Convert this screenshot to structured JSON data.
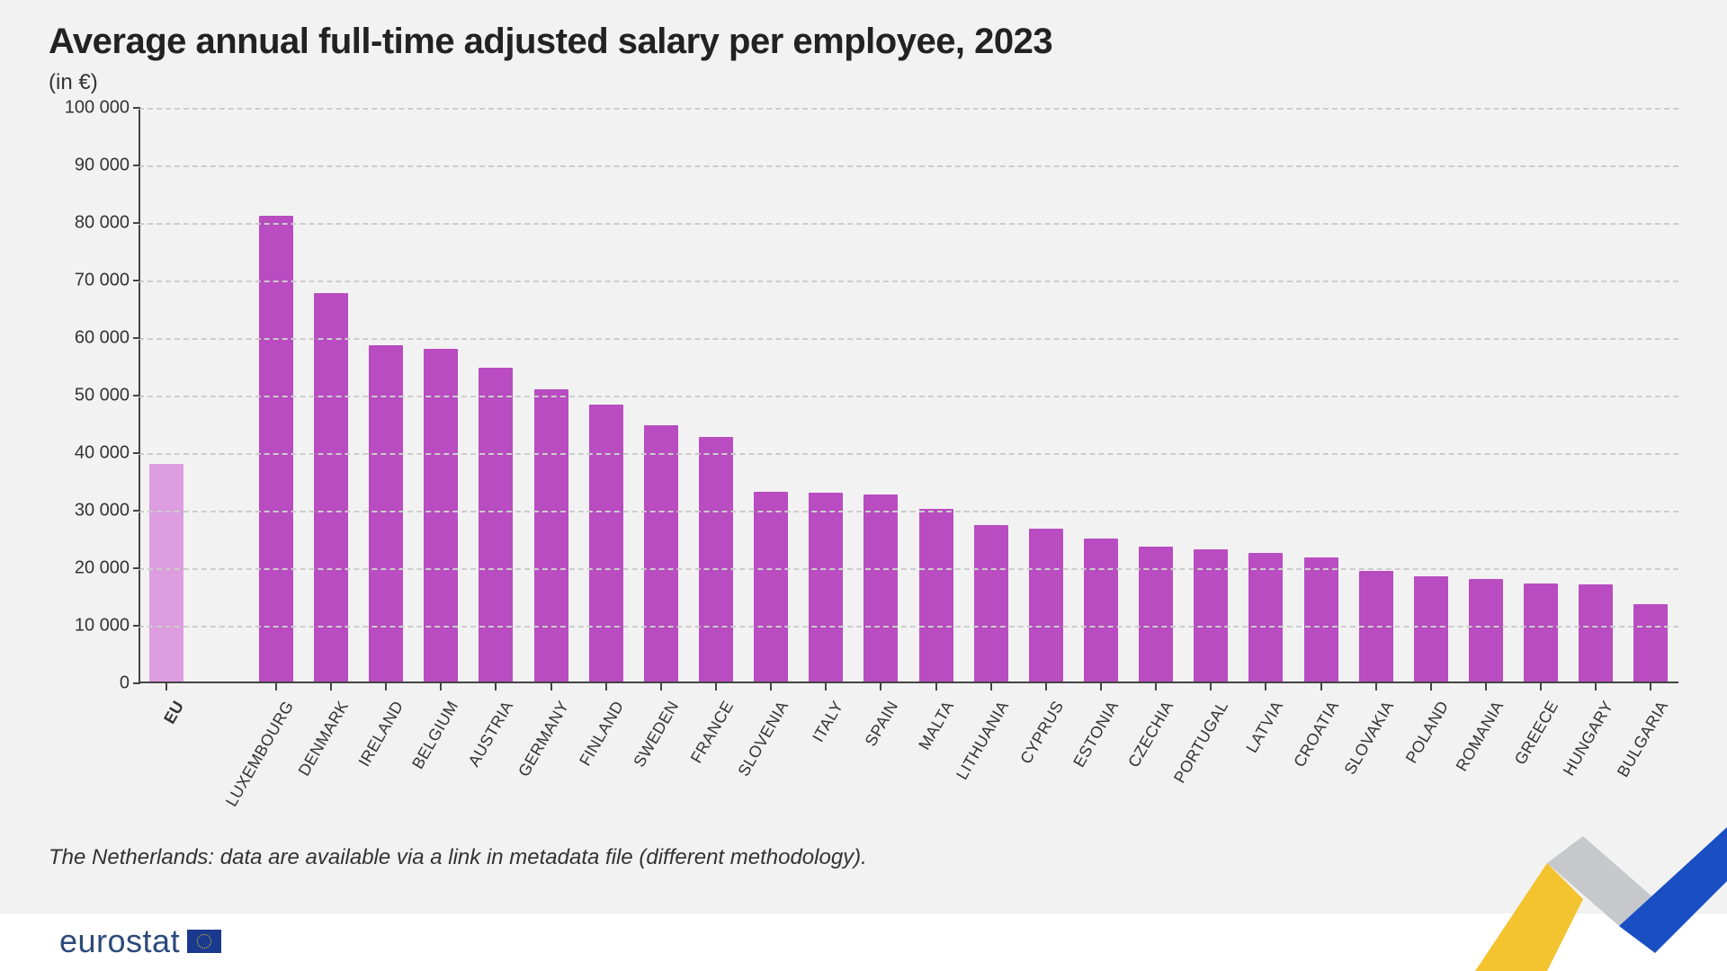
{
  "title": "Average annual full-time adjusted salary per employee, 2023",
  "subtitle": "(in €)",
  "footnote": "The Netherlands: data are available via a link in metadata file (different methodology).",
  "logo_text": "eurostat",
  "chart": {
    "type": "bar",
    "ylim": [
      0,
      100000
    ],
    "ytick_step": 10000,
    "yticks": [
      0,
      10000,
      20000,
      30000,
      40000,
      50000,
      60000,
      70000,
      80000,
      90000,
      100000
    ],
    "ytick_labels": [
      "0",
      "10 000",
      "20 000",
      "30 000",
      "40 000",
      "50 000",
      "60 000",
      "70 000",
      "80 000",
      "90 000",
      "100 000"
    ],
    "background_color": "#f2f2f2",
    "grid_color": "#cccccc",
    "axis_color": "#444444",
    "label_fontsize": 20,
    "xlabel_fontsize": 18,
    "title_fontsize": 40,
    "title_fontweight": 800,
    "subtitle_fontsize": 24,
    "bar_width_ratio": 0.62,
    "gap_after_index": 0,
    "gap_extra": 1.0,
    "colors": {
      "eu_bar": "#dd9ddf",
      "country_bar": "#b84cc0"
    },
    "categories": [
      "EU",
      "LUXEMBOURG",
      "DENMARK",
      "IRELAND",
      "BELGIUM",
      "AUSTRIA",
      "GERMANY",
      "FINLAND",
      "SWEDEN",
      "FRANCE",
      "SLOVENIA",
      "ITALY",
      "SPAIN",
      "MALTA",
      "LITHUANIA",
      "CYPRUS",
      "ESTONIA",
      "CZECHIA",
      "PORTUGAL",
      "LATVIA",
      "CROATIA",
      "SLOVAKIA",
      "POLAND",
      "ROMANIA",
      "GREECE",
      "HUNGARY",
      "BULGARIA"
    ],
    "values": [
      37800,
      81000,
      67500,
      58500,
      57800,
      54500,
      50800,
      48200,
      44500,
      42500,
      33000,
      32800,
      32500,
      30000,
      27200,
      26500,
      24800,
      23500,
      23000,
      22300,
      21500,
      19200,
      18300,
      17800,
      17000,
      16900,
      13500
    ],
    "highlight_index": 0
  },
  "swoosh_colors": {
    "yellow": "#f4c430",
    "gray": "#c6c8cc",
    "blue": "#1a4fc4"
  }
}
